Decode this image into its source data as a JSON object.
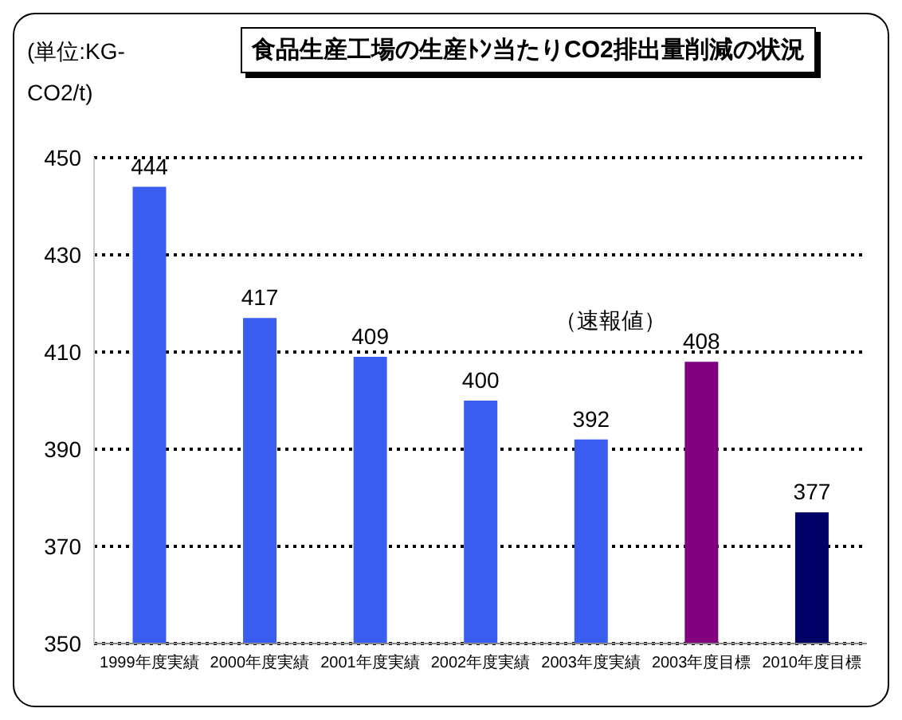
{
  "chart_data": {
    "type": "bar",
    "title": "食品生産工場の生産ﾄﾝ当たりCO2排出量削減の状況",
    "ylabel": "(単位:KG-CO2/t)",
    "categories": [
      "1999年度実績",
      "2000年度実績",
      "2001年度実績",
      "2002年度実績",
      "2003年度実績",
      "2003年度目標",
      "2010年度目標"
    ],
    "values": [
      444,
      417,
      409,
      400,
      392,
      408,
      377
    ],
    "colors": [
      "#3a5ef0",
      "#3a5ef0",
      "#3a5ef0",
      "#3a5ef0",
      "#3a5ef0",
      "#800080",
      "#000066"
    ],
    "annotations": [
      "（速報値）"
    ],
    "ylim": [
      350,
      450
    ],
    "yticks": [
      350,
      370,
      390,
      410,
      430,
      450
    ],
    "grid": "y",
    "data_labels": true
  }
}
